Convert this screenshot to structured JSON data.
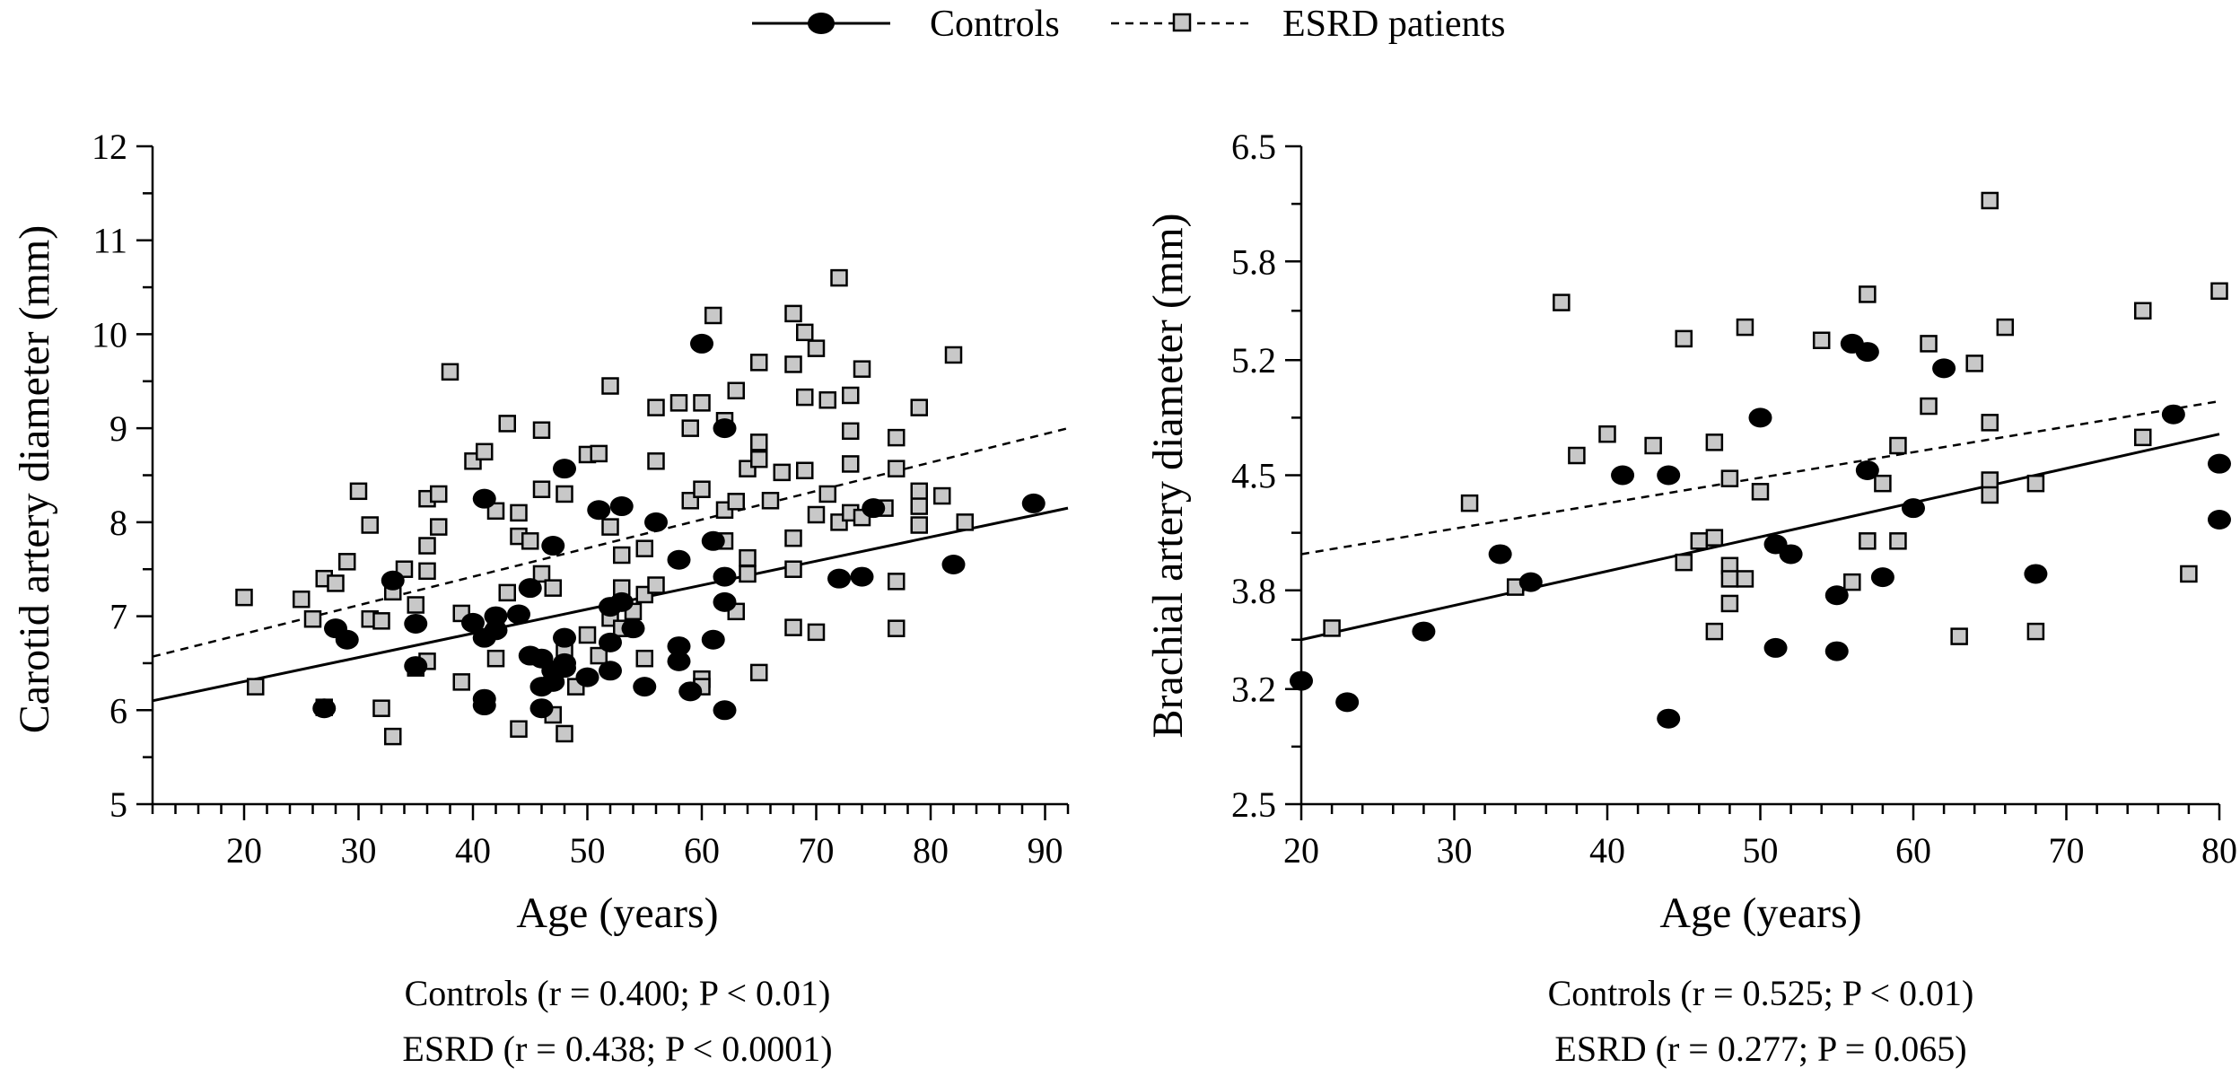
{
  "legend": {
    "controls_label": "Controls",
    "esrd_label": "ESRD patients"
  },
  "chart_data": [
    {
      "type": "scatter",
      "xlabel": "Age (years)",
      "ylabel": "Carotid artery diameter (mm)",
      "xlim": [
        12,
        92
      ],
      "ylim": [
        5,
        12
      ],
      "xticks": [
        20,
        30,
        40,
        50,
        60,
        70,
        80,
        90
      ],
      "yticks": [
        5,
        6,
        7,
        8,
        9,
        10,
        11,
        12
      ],
      "series": [
        {
          "name": "Controls",
          "marker": "circle",
          "color": "#000000",
          "line": "solid",
          "fit": {
            "x": [
              12,
              92
            ],
            "y": [
              6.1,
              8.15
            ]
          },
          "points": [
            [
              27,
              6.02
            ],
            [
              28,
              6.87
            ],
            [
              29,
              6.75
            ],
            [
              33,
              7.38
            ],
            [
              35,
              6.92
            ],
            [
              35,
              6.47
            ],
            [
              40,
              6.93
            ],
            [
              41,
              8.25
            ],
            [
              41,
              6.77
            ],
            [
              41,
              6.12
            ],
            [
              41,
              6.05
            ],
            [
              42,
              7.0
            ],
            [
              42,
              6.85
            ],
            [
              44,
              7.02
            ],
            [
              45,
              7.3
            ],
            [
              45,
              6.58
            ],
            [
              46,
              6.55
            ],
            [
              46,
              6.25
            ],
            [
              46,
              6.02
            ],
            [
              47,
              7.75
            ],
            [
              47,
              6.42
            ],
            [
              47,
              6.3
            ],
            [
              48,
              8.57
            ],
            [
              48,
              6.77
            ],
            [
              48,
              6.5
            ],
            [
              48,
              6.45
            ],
            [
              50,
              6.35
            ],
            [
              51,
              8.13
            ],
            [
              52,
              7.1
            ],
            [
              52,
              6.72
            ],
            [
              52,
              6.42
            ],
            [
              53,
              8.17
            ],
            [
              53,
              7.15
            ],
            [
              54,
              6.87
            ],
            [
              55,
              6.25
            ],
            [
              56,
              8.0
            ],
            [
              58,
              7.6
            ],
            [
              58,
              6.68
            ],
            [
              58,
              6.52
            ],
            [
              59,
              6.2
            ],
            [
              60,
              9.9
            ],
            [
              61,
              7.8
            ],
            [
              61,
              6.75
            ],
            [
              62,
              9.0
            ],
            [
              62,
              7.42
            ],
            [
              62,
              7.15
            ],
            [
              62,
              6.0
            ],
            [
              72,
              7.4
            ],
            [
              74,
              7.42
            ],
            [
              75,
              8.15
            ],
            [
              82,
              7.55
            ],
            [
              89,
              8.2
            ]
          ]
        },
        {
          "name": "ESRD patients",
          "marker": "square",
          "color": "#c8c8c8",
          "line": "dashed",
          "fit": {
            "x": [
              12,
              92
            ],
            "y": [
              6.57,
              9.0
            ]
          },
          "points": [
            [
              20,
              7.2
            ],
            [
              21,
              6.25
            ],
            [
              25,
              7.18
            ],
            [
              26,
              6.97
            ],
            [
              27,
              6.03
            ],
            [
              27,
              7.4
            ],
            [
              28,
              7.35
            ],
            [
              29,
              7.58
            ],
            [
              30,
              8.33
            ],
            [
              31,
              7.97
            ],
            [
              31,
              6.97
            ],
            [
              32,
              6.95
            ],
            [
              32,
              6.02
            ],
            [
              33,
              5.72
            ],
            [
              33,
              7.26
            ],
            [
              34,
              7.5
            ],
            [
              35,
              6.45
            ],
            [
              35,
              7.12
            ],
            [
              36,
              8.25
            ],
            [
              36,
              7.75
            ],
            [
              36,
              7.48
            ],
            [
              36,
              6.52
            ],
            [
              37,
              8.3
            ],
            [
              37,
              7.95
            ],
            [
              38,
              9.6
            ],
            [
              39,
              7.03
            ],
            [
              39,
              6.3
            ],
            [
              40,
              8.65
            ],
            [
              41,
              8.75
            ],
            [
              42,
              8.12
            ],
            [
              42,
              6.55
            ],
            [
              42,
              6.95
            ],
            [
              43,
              9.05
            ],
            [
              43,
              7.25
            ],
            [
              44,
              5.8
            ],
            [
              44,
              7.85
            ],
            [
              44,
              8.1
            ],
            [
              45,
              7.8
            ],
            [
              46,
              8.98
            ],
            [
              46,
              8.35
            ],
            [
              46,
              7.45
            ],
            [
              47,
              7.3
            ],
            [
              47,
              5.95
            ],
            [
              48,
              5.75
            ],
            [
              48,
              8.3
            ],
            [
              48,
              6.62
            ],
            [
              49,
              6.25
            ],
            [
              50,
              8.72
            ],
            [
              50,
              6.8
            ],
            [
              51,
              8.73
            ],
            [
              51,
              6.58
            ],
            [
              52,
              9.45
            ],
            [
              52,
              7.95
            ],
            [
              52,
              6.98
            ],
            [
              53,
              7.3
            ],
            [
              53,
              7.65
            ],
            [
              53,
              6.87
            ],
            [
              54,
              7.05
            ],
            [
              55,
              7.72
            ],
            [
              55,
              7.23
            ],
            [
              55,
              6.55
            ],
            [
              56,
              9.22
            ],
            [
              56,
              8.65
            ],
            [
              56,
              7.33
            ],
            [
              58,
              9.27
            ],
            [
              59,
              9.0
            ],
            [
              59,
              8.23
            ],
            [
              60,
              9.27
            ],
            [
              60,
              8.35
            ],
            [
              60,
              6.33
            ],
            [
              60,
              6.25
            ],
            [
              61,
              10.2
            ],
            [
              62,
              9.08
            ],
            [
              62,
              8.13
            ],
            [
              62,
              7.8
            ],
            [
              63,
              9.4
            ],
            [
              63,
              8.22
            ],
            [
              63,
              7.05
            ],
            [
              64,
              8.57
            ],
            [
              64,
              7.62
            ],
            [
              64,
              7.45
            ],
            [
              65,
              9.7
            ],
            [
              65,
              8.85
            ],
            [
              65,
              8.67
            ],
            [
              65,
              6.4
            ],
            [
              66,
              8.23
            ],
            [
              67,
              8.53
            ],
            [
              68,
              10.22
            ],
            [
              68,
              9.68
            ],
            [
              68,
              7.83
            ],
            [
              68,
              7.5
            ],
            [
              68,
              6.88
            ],
            [
              69,
              10.02
            ],
            [
              69,
              9.33
            ],
            [
              69,
              8.55
            ],
            [
              70,
              9.85
            ],
            [
              70,
              8.08
            ],
            [
              70,
              6.83
            ],
            [
              71,
              9.3
            ],
            [
              71,
              8.3
            ],
            [
              72,
              10.6
            ],
            [
              72,
              8.0
            ],
            [
              73,
              9.35
            ],
            [
              73,
              8.97
            ],
            [
              73,
              8.62
            ],
            [
              73,
              8.1
            ],
            [
              74,
              9.63
            ],
            [
              74,
              8.05
            ],
            [
              76,
              8.15
            ],
            [
              77,
              8.9
            ],
            [
              77,
              8.57
            ],
            [
              77,
              7.37
            ],
            [
              77,
              6.87
            ],
            [
              79,
              9.22
            ],
            [
              79,
              8.33
            ],
            [
              79,
              8.17
            ],
            [
              79,
              7.97
            ],
            [
              81,
              8.28
            ],
            [
              82,
              9.78
            ],
            [
              83,
              8.0
            ]
          ]
        }
      ],
      "stats": [
        "Controls (r = 0.400; P < 0.01)",
        "ESRD (r = 0.438; P < 0.0001)"
      ]
    },
    {
      "type": "scatter",
      "xlabel": "Age (years)",
      "ylabel": "Brachial artery diameter (mm)",
      "xlim": [
        20,
        80
      ],
      "ylim": [
        2.5,
        6.5
      ],
      "xticks": [
        20,
        30,
        40,
        50,
        60,
        70,
        80
      ],
      "yticks": [
        "2.5",
        "3.2",
        "3.8",
        "4.5",
        "5.2",
        "5.8",
        "6.5"
      ],
      "series": [
        {
          "name": "Controls",
          "marker": "circle",
          "color": "#000000",
          "line": "solid",
          "fit": {
            "x": [
              20,
              80
            ],
            "y": [
              3.5,
              4.75
            ]
          },
          "points": [
            [
              20,
              3.25
            ],
            [
              23,
              3.12
            ],
            [
              28,
              3.55
            ],
            [
              33,
              4.02
            ],
            [
              35,
              3.85
            ],
            [
              41,
              4.5
            ],
            [
              44,
              4.5
            ],
            [
              44,
              3.02
            ],
            [
              50,
              4.85
            ],
            [
              51,
              4.08
            ],
            [
              51,
              3.45
            ],
            [
              52,
              4.02
            ],
            [
              55,
              3.77
            ],
            [
              55,
              3.43
            ],
            [
              56,
              5.3
            ],
            [
              57,
              5.25
            ],
            [
              57,
              4.53
            ],
            [
              58,
              3.88
            ],
            [
              60,
              4.3
            ],
            [
              62,
              5.15
            ],
            [
              68,
              3.9
            ],
            [
              77,
              4.87
            ],
            [
              80,
              4.57
            ],
            [
              80,
              4.23
            ]
          ]
        },
        {
          "name": "ESRD patients",
          "marker": "square",
          "color": "#c8c8c8",
          "line": "dashed",
          "fit": {
            "x": [
              20,
              80
            ],
            "y": [
              4.02,
              4.95
            ]
          },
          "points": [
            [
              22,
              3.57
            ],
            [
              31,
              4.33
            ],
            [
              34,
              3.82
            ],
            [
              37,
              5.55
            ],
            [
              38,
              4.62
            ],
            [
              40,
              4.75
            ],
            [
              43,
              4.68
            ],
            [
              45,
              5.33
            ],
            [
              45,
              3.97
            ],
            [
              46,
              4.1
            ],
            [
              47,
              4.7
            ],
            [
              47,
              4.12
            ],
            [
              47,
              3.55
            ],
            [
              48,
              4.48
            ],
            [
              48,
              3.95
            ],
            [
              48,
              3.87
            ],
            [
              48,
              3.72
            ],
            [
              49,
              5.4
            ],
            [
              49,
              3.87
            ],
            [
              50,
              4.4
            ],
            [
              54,
              5.32
            ],
            [
              56,
              3.85
            ],
            [
              57,
              5.6
            ],
            [
              57,
              4.1
            ],
            [
              58,
              4.45
            ],
            [
              59,
              4.68
            ],
            [
              59,
              4.1
            ],
            [
              61,
              5.3
            ],
            [
              61,
              4.92
            ],
            [
              63,
              3.52
            ],
            [
              64,
              5.18
            ],
            [
              65,
              6.17
            ],
            [
              65,
              4.82
            ],
            [
              65,
              4.47
            ],
            [
              65,
              4.38
            ],
            [
              66,
              5.4
            ],
            [
              68,
              4.45
            ],
            [
              68,
              3.55
            ],
            [
              75,
              5.5
            ],
            [
              75,
              4.73
            ],
            [
              78,
              3.9
            ],
            [
              80,
              5.62
            ]
          ]
        }
      ],
      "stats": [
        "Controls (r = 0.525; P < 0.01)",
        "ESRD (r = 0.277; P = 0.065)"
      ]
    }
  ]
}
